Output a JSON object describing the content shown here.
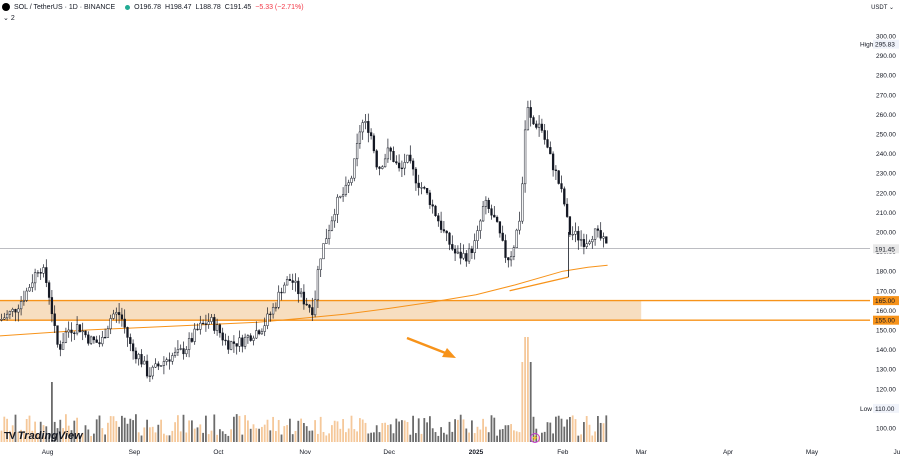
{
  "header": {
    "symbol": "SOL / TetherUS · 1D · BINANCE",
    "open": "O196.78",
    "high": "H198.47",
    "low": "L188.78",
    "close": "C191.45",
    "change": "−5.33 (−2.71%)",
    "sub_count": "2",
    "currency": "USDT",
    "logo_text": "TradingView"
  },
  "colors": {
    "up": "#131722",
    "down": "#131722",
    "orange": "#f7931a",
    "zone": "#f6d8b5",
    "volume_up": "#f5c89a",
    "volume_down": "#6b6b6b"
  },
  "chart_data": {
    "type": "candlestick",
    "title": "SOL / TetherUS · 1D · BINANCE",
    "y_axis": {
      "ticks": [
        100,
        110,
        120,
        130,
        140,
        150,
        160,
        170,
        180,
        190,
        200,
        210,
        220,
        230,
        240,
        250,
        260,
        270,
        280,
        290,
        300
      ],
      "range": [
        95,
        302
      ],
      "side": "right"
    },
    "x_axis": {
      "tick_labels": [
        "Aug",
        "Sep",
        "Oct",
        "Nov",
        "Dec",
        "2025",
        "Feb",
        "Mar",
        "Apr",
        "May",
        "Jun"
      ]
    },
    "price_labels": {
      "current": {
        "label": "191.45",
        "value": 191.45
      },
      "high": {
        "label": "High",
        "value": 295.83,
        "text": "295.83"
      },
      "low": {
        "label": "Low",
        "value": 110.0,
        "text": "110.00"
      },
      "zone_top": {
        "label": "165.00",
        "value": 165.0
      },
      "zone_bottom": {
        "label": "155.00",
        "value": 155.0
      }
    },
    "close_path": [
      [
        "Jul 15",
        155
      ],
      [
        "Jul 20",
        160
      ],
      [
        "Jul 24",
        168
      ],
      [
        "Jul 29",
        183
      ],
      [
        "Jul 31",
        178
      ],
      [
        "Aug 2",
        165
      ],
      [
        "Aug 4",
        145
      ],
      [
        "Aug 5",
        140
      ],
      [
        "Aug 8",
        150
      ],
      [
        "Aug 12",
        152
      ],
      [
        "Aug 16",
        145
      ],
      [
        "Aug 20",
        143
      ],
      [
        "Aug 24",
        158
      ],
      [
        "Aug 27",
        158
      ],
      [
        "Aug 31",
        140
      ],
      [
        "Sep 3",
        136
      ],
      [
        "Sep 6",
        127
      ],
      [
        "Sep 9",
        131
      ],
      [
        "Sep 13",
        136
      ],
      [
        "Sep 17",
        138
      ],
      [
        "Sep 20",
        142
      ],
      [
        "Sep 24",
        151
      ],
      [
        "Sep 28",
        155
      ],
      [
        "Oct 1",
        150
      ],
      [
        "Oct 4",
        143
      ],
      [
        "Oct 9",
        144
      ],
      [
        "Oct 13",
        148
      ],
      [
        "Oct 17",
        152
      ],
      [
        "Oct 21",
        162
      ],
      [
        "Oct 24",
        173
      ],
      [
        "Oct 27",
        176
      ],
      [
        "Oct 31",
        166
      ],
      [
        "Nov 4",
        160
      ],
      [
        "Nov 6",
        186
      ],
      [
        "Nov 9",
        200
      ],
      [
        "Nov 12",
        214
      ],
      [
        "Nov 16",
        222
      ],
      [
        "Nov 18",
        230
      ],
      [
        "Nov 21",
        256
      ],
      [
        "Nov 24",
        253
      ],
      [
        "Nov 27",
        232
      ],
      [
        "Dec 1",
        242
      ],
      [
        "Dec 5",
        230
      ],
      [
        "Dec 7",
        238
      ],
      [
        "Dec 11",
        226
      ],
      [
        "Dec 15",
        218
      ],
      [
        "Dec 18",
        208
      ],
      [
        "Dec 21",
        198
      ],
      [
        "Dec 25",
        188
      ],
      [
        "Dec 29",
        188
      ],
      [
        "Jan 1",
        195
      ],
      [
        "Jan 4",
        215
      ],
      [
        "Jan 8",
        205
      ],
      [
        "Jan 12",
        186
      ],
      [
        "Jan 14",
        190
      ],
      [
        "Jan 17",
        210
      ],
      [
        "Jan 19",
        265
      ],
      [
        "Jan 21",
        255
      ],
      [
        "Jan 24",
        255
      ],
      [
        "Jan 27",
        240
      ],
      [
        "Jan 30",
        228
      ],
      [
        "Feb 2",
        212
      ],
      [
        "Feb 3",
        200
      ],
      [
        "Feb 6",
        198
      ],
      [
        "Feb 9",
        195
      ],
      [
        "Feb 12",
        200
      ],
      [
        "Feb 15",
        196
      ],
      [
        "Feb 17",
        191
      ]
    ],
    "moving_average": [
      [
        "Jul 15",
        147
      ],
      [
        "Aug 15",
        150
      ],
      [
        "Sep 15",
        152
      ],
      [
        "Oct 15",
        154
      ],
      [
        "Oct 31",
        156
      ],
      [
        "Nov 15",
        158
      ],
      [
        "Dec 1",
        161
      ],
      [
        "Dec 15",
        164
      ],
      [
        "Jan 1",
        168
      ],
      [
        "Jan 15",
        173
      ],
      [
        "Feb 1",
        180
      ],
      [
        "Feb 10",
        182
      ],
      [
        "Feb 17",
        183
      ]
    ],
    "trendline": [
      [
        "Jan 13",
        170
      ],
      [
        "Feb 3",
        177
      ]
    ],
    "zone": {
      "low": 155,
      "high": 165,
      "from": "Jul 15",
      "to": "Mar 1"
    },
    "volume_peak_date": "Jan 19",
    "annotation": "arrow pointing at volume spike"
  }
}
